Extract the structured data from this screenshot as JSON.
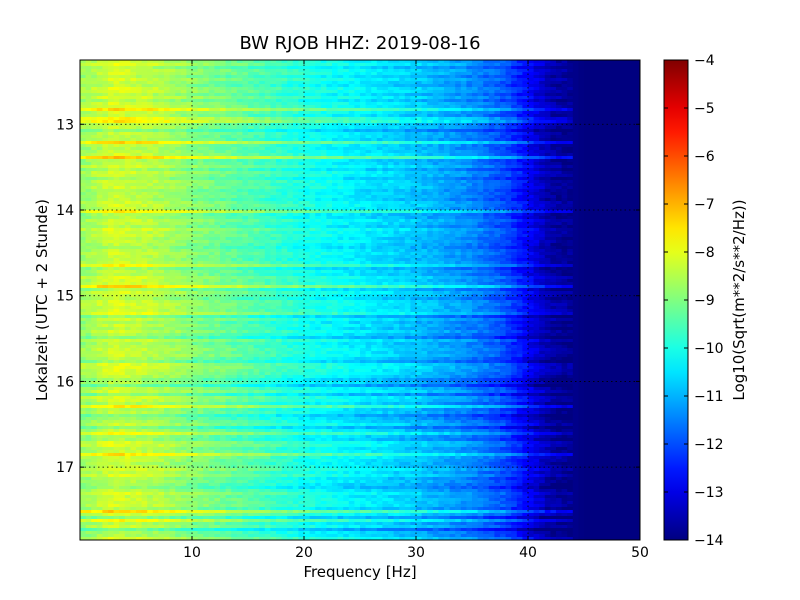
{
  "chart_data": {
    "type": "heatmap",
    "title": "BW RJOB HHZ: 2019-08-16",
    "xlabel": "Frequency [Hz]",
    "ylabel": "Lokalzeit (UTC + 2 Stunde)",
    "colorbar_label": "Log10(Sqrt(m**2/s**2/Hz))",
    "colormap": "jet",
    "xlim": [
      0,
      50
    ],
    "ylim": [
      12.25,
      17.85
    ],
    "y_inverted": true,
    "clim": [
      -14,
      -4
    ],
    "x_ticks": [
      "10",
      "20",
      "30",
      "40",
      "50"
    ],
    "y_ticks": [
      "13",
      "14",
      "15",
      "16",
      "17"
    ],
    "colorbar_ticks": [
      "-4",
      "-5",
      "-6",
      "-7",
      "-8",
      "-9",
      "-10",
      "-11",
      "-12",
      "-13",
      "-14"
    ],
    "grid": true,
    "spectral_profile": [
      {
        "freq": 0.5,
        "value": -8.7
      },
      {
        "freq": 3,
        "value": -8.2
      },
      {
        "freq": 7,
        "value": -8.5
      },
      {
        "freq": 10,
        "value": -8.9
      },
      {
        "freq": 15,
        "value": -9.4
      },
      {
        "freq": 20,
        "value": -10.0
      },
      {
        "freq": 25,
        "value": -10.4
      },
      {
        "freq": 30,
        "value": -10.8
      },
      {
        "freq": 35,
        "value": -11.4
      },
      {
        "freq": 38,
        "value": -12.0
      },
      {
        "freq": 40,
        "value": -12.8
      },
      {
        "freq": 42,
        "value": -13.6
      },
      {
        "freq": 45,
        "value": -14.0
      },
      {
        "freq": 50,
        "value": -14.0
      }
    ]
  }
}
